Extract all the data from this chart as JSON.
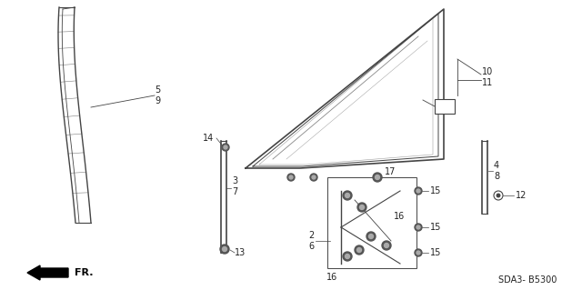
{
  "bg_color": "#ffffff",
  "line_color": "#444444",
  "label_color": "#222222",
  "figsize": [
    6.4,
    3.19
  ],
  "dpi": 100,
  "footer_code": "SDA3- B5300"
}
